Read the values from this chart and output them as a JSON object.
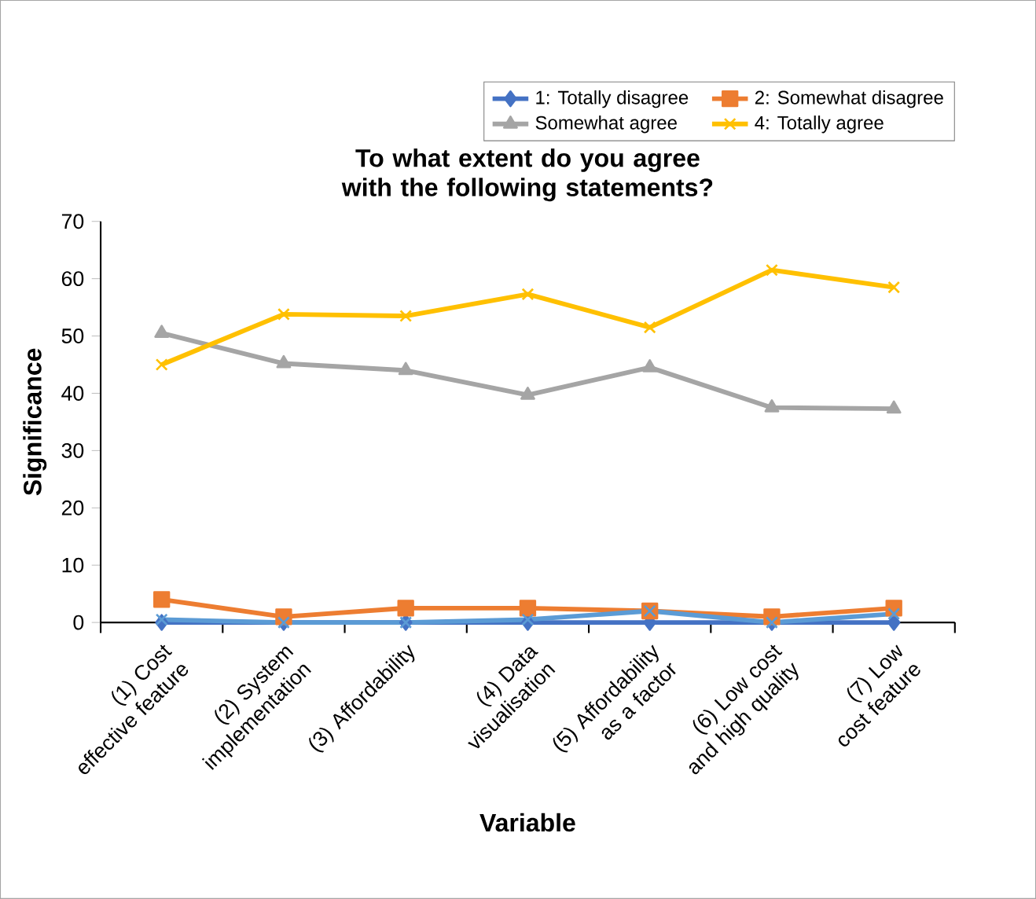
{
  "chart_data": {
    "type": "line",
    "title": "To what extent do you agree with the following statements?",
    "xlabel": "Variable",
    "ylabel": "Significance",
    "categories": [
      "(1) Cost effective feature",
      "(2) System implementation",
      "(3) Affordability",
      "(4) Data visualisation",
      "(5) Affordability as a factor",
      "(6) Low cost and high quality",
      "(7) Low cost feature"
    ],
    "series": [
      {
        "name": "1: Totally disagree",
        "color": "#4472c4",
        "marker": "diamond",
        "values": [
          0,
          0,
          0,
          0,
          0,
          0,
          0
        ]
      },
      {
        "name": "2: Somewhat disagree",
        "color": "#ed7d31",
        "marker": "square",
        "values": [
          4,
          1,
          2.5,
          2.5,
          2,
          1,
          2.5
        ]
      },
      {
        "name": "Somewhat agree",
        "color": "#a5a5a5",
        "marker": "triangle",
        "values": [
          50.5,
          45.2,
          44,
          39.7,
          44.5,
          37.5,
          37.3
        ]
      },
      {
        "name": "4: Totally agree",
        "color": "#ffc000",
        "marker": "cross",
        "values": [
          45,
          53.8,
          53.5,
          57.3,
          51.5,
          61.5,
          58.5
        ]
      },
      {
        "color": "#5b9bd5",
        "marker": "cross",
        "values": [
          0.5,
          0,
          0,
          0.5,
          2,
          0,
          1.5
        ]
      }
    ],
    "ylim": [
      0,
      70
    ],
    "yticks": [
      0,
      10,
      20,
      30,
      40,
      50,
      60,
      70
    ],
    "legend": "top right",
    "grid": false,
    "line_style": "solid"
  }
}
